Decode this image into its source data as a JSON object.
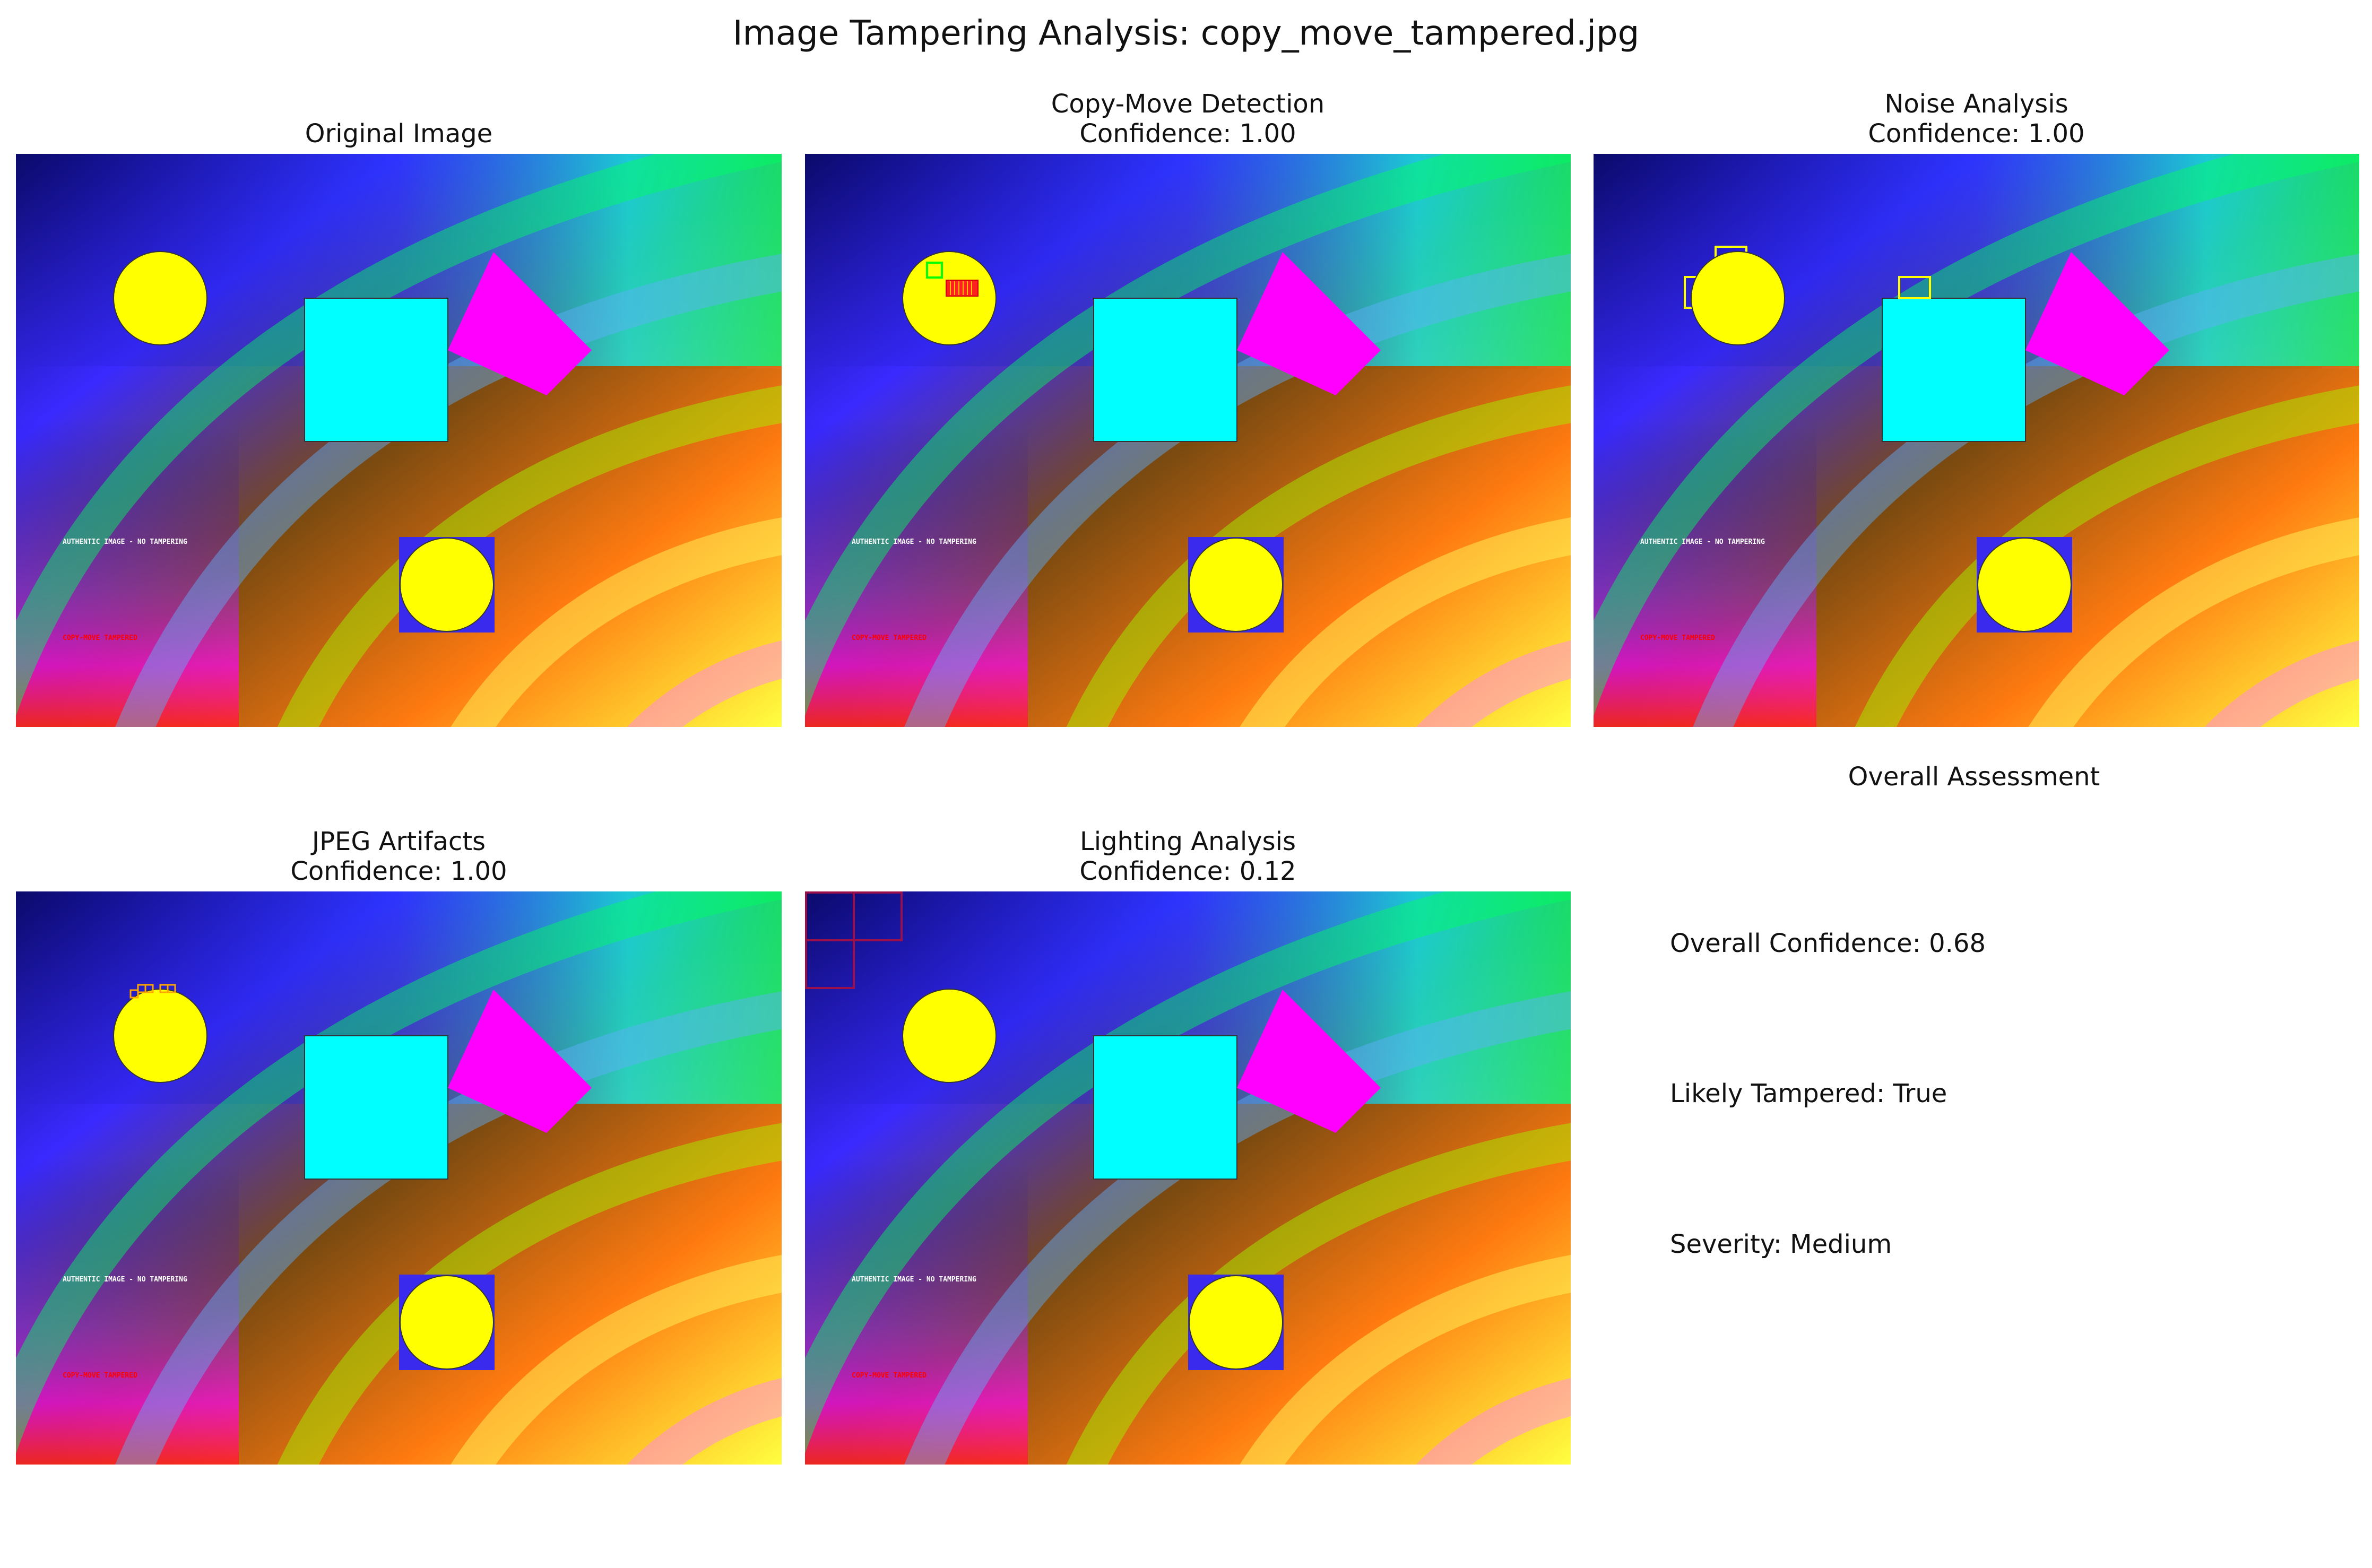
{
  "figure": {
    "title": "Image Tampering Analysis: copy_move_tampered.jpg"
  },
  "scene": {
    "authentic_text": "AUTHENTIC IMAGE - NO TAMPERING",
    "tampered_text": "COPY-MOVE TAMPERED",
    "colors": {
      "yellow": "#ffff00",
      "cyan": "#00ffff",
      "magenta": "#ff00ff",
      "blue_patch": "#3a2aee",
      "red_text": "#ff0000",
      "white_text": "#ffffff"
    }
  },
  "panels": [
    {
      "id": "original",
      "title_line1": "Original Image",
      "title_line2": ""
    },
    {
      "id": "copy_move",
      "title_line1": "Copy-Move Detection",
      "title_line2": "Confidence: 1.00",
      "overlay_colors": {
        "box_green": "#00ff00",
        "box_red": "#ff0000"
      }
    },
    {
      "id": "noise",
      "title_line1": "Noise Analysis",
      "title_line2": "Confidence: 1.00",
      "overlay_colors": {
        "box": "#ffff00"
      }
    },
    {
      "id": "jpeg",
      "title_line1": "JPEG Artifacts",
      "title_line2": "Confidence: 1.00",
      "overlay_colors": {
        "box": "#ffa500"
      }
    },
    {
      "id": "lighting",
      "title_line1": "Lighting Analysis",
      "title_line2": "Confidence: 0.12",
      "overlay_colors": {
        "box": "#9b0f4a"
      }
    }
  ],
  "assessment": {
    "title": "Overall Assessment",
    "confidence": "Overall Confidence: 0.68",
    "tampered": "Likely Tampered: True",
    "severity": "Severity: Medium"
  }
}
